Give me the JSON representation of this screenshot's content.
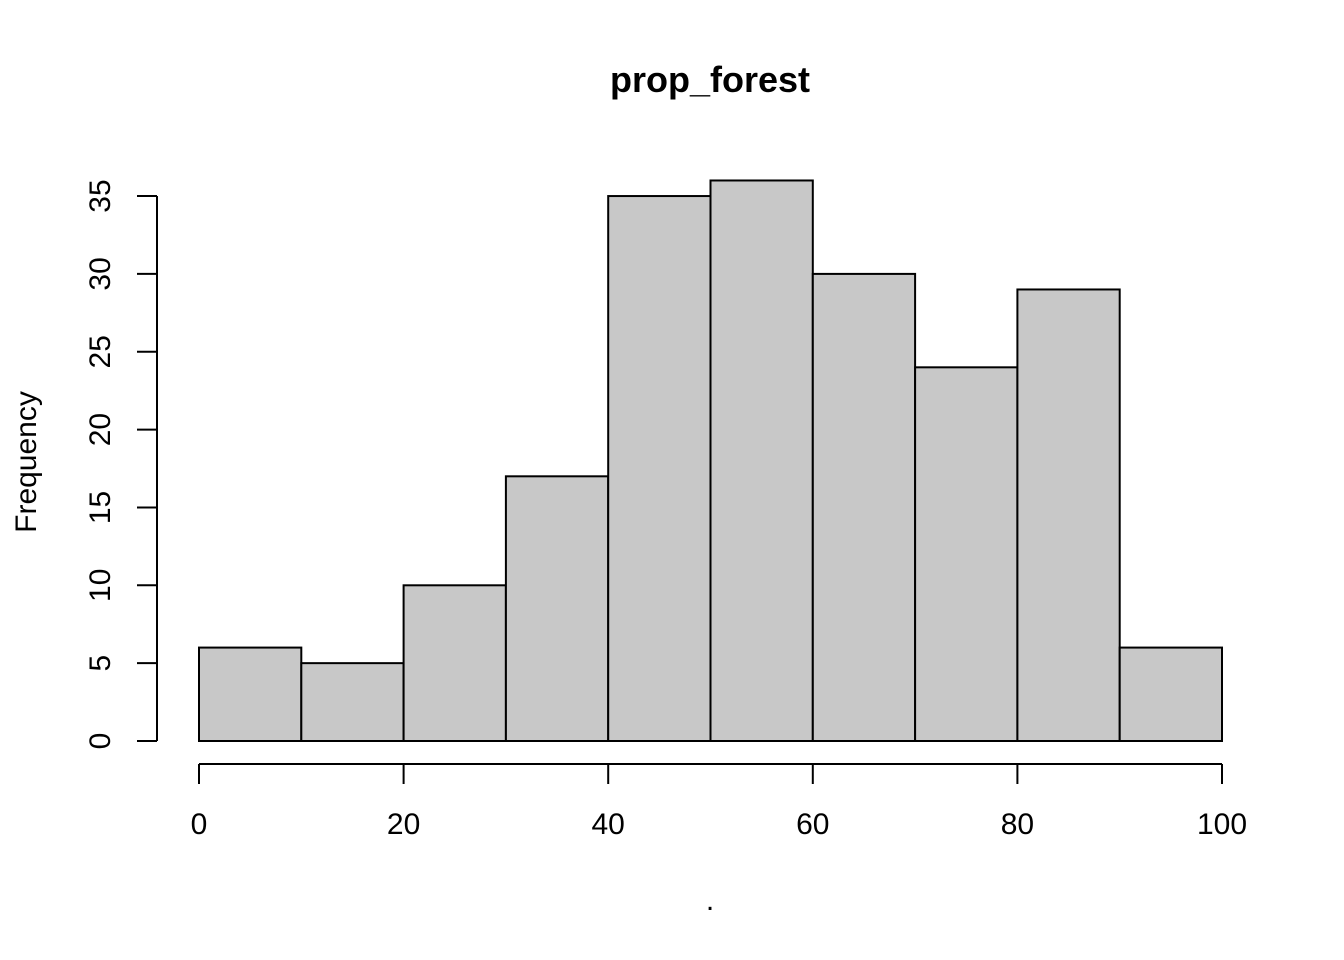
{
  "chart_data": {
    "type": "bar",
    "title": "prop_forest",
    "xlabel": ".",
    "ylabel": "Frequency",
    "bins": [
      [
        0,
        10
      ],
      [
        10,
        20
      ],
      [
        20,
        30
      ],
      [
        30,
        40
      ],
      [
        40,
        50
      ],
      [
        50,
        60
      ],
      [
        60,
        70
      ],
      [
        70,
        80
      ],
      [
        80,
        90
      ],
      [
        90,
        100
      ]
    ],
    "values": [
      6,
      5,
      10,
      17,
      35,
      36,
      30,
      24,
      29,
      6
    ],
    "xlim": [
      0,
      100
    ],
    "ylim": [
      0,
      36
    ],
    "x_ticks": [
      0,
      20,
      40,
      60,
      80,
      100
    ],
    "y_ticks": [
      0,
      5,
      10,
      15,
      20,
      25,
      30,
      35
    ],
    "grid": false,
    "colors": {
      "bar_fill": "#c8c8c8",
      "bar_stroke": "#000000",
      "background": "#ffffff"
    }
  }
}
